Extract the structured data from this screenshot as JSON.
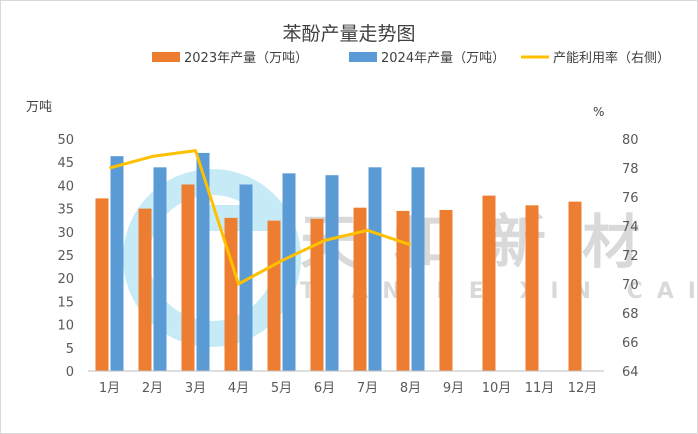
{
  "chart_data": {
    "type": "bar",
    "title": "苯酚产量走势图",
    "categories": [
      "1月",
      "2月",
      "3月",
      "4月",
      "5月",
      "6月",
      "7月",
      "8月",
      "9月",
      "10月",
      "11月",
      "12月"
    ],
    "series": [
      {
        "name": "2023年产量（万吨）",
        "type": "bar",
        "axis": "left",
        "color": "#ED7D31",
        "values": [
          37.2,
          35.0,
          40.2,
          33.0,
          32.4,
          32.8,
          35.2,
          34.5,
          34.7,
          37.8,
          35.7,
          36.5
        ]
      },
      {
        "name": "2024年产量（万吨）",
        "type": "bar",
        "axis": "left",
        "color": "#5B9BD5",
        "values": [
          46.3,
          43.9,
          47.0,
          40.2,
          42.6,
          42.2,
          43.9,
          43.9,
          null,
          null,
          null,
          null
        ]
      },
      {
        "name": "产能利用率（右侧）",
        "type": "line",
        "axis": "right",
        "color": "#FFC000",
        "values": [
          78.0,
          78.8,
          79.2,
          70.0,
          71.6,
          73.0,
          73.7,
          72.7,
          null,
          null,
          null,
          null
        ]
      }
    ],
    "y_left": {
      "label": "万吨",
      "min": 0,
      "max": 50,
      "step": 5,
      "ticks": [
        "0",
        "5",
        "10",
        "15",
        "20",
        "25",
        "30",
        "35",
        "40",
        "45",
        "50"
      ]
    },
    "y_right": {
      "label": "%",
      "min": 64,
      "max": 80,
      "step": 2,
      "ticks": [
        "64",
        "66",
        "68",
        "70",
        "72",
        "74",
        "76",
        "78",
        "80"
      ]
    },
    "grid": false,
    "legend": "top"
  },
  "watermark": {
    "text_cn": "天和新材",
    "text_en": "TIAN HE XIN CAI"
  }
}
